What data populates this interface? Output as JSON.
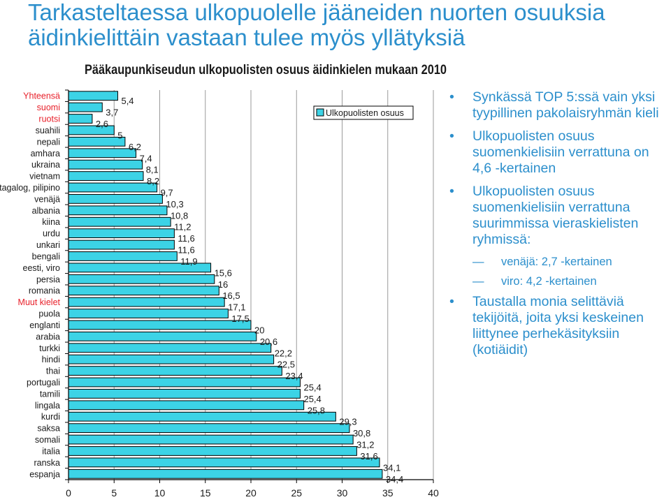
{
  "slide": {
    "title": "Tarkasteltaessa ulkopuolelle jääneiden nuorten osuuksia äidinkielittäin vastaan tulee myös yllätyksiä"
  },
  "bullets": [
    {
      "type": "bullet",
      "text": "Synkässä TOP 5:ssä vain yksi tyypillinen pakolaisryhmän kieli"
    },
    {
      "type": "bullet",
      "text": "Ulkopuolisten osuus suomenkielisiin verrattuna on 4,6 -kertainen"
    },
    {
      "type": "bullet",
      "text": "Ulkopuolisten osuus suomenkielisiin verrattuna suurimmissa vieraskielisten ryhmissä:"
    },
    {
      "type": "sub",
      "text": "venäjä: 2,7 -kertainen"
    },
    {
      "type": "sub",
      "text": "viro: 4,2 -kertainen"
    },
    {
      "type": "bullet",
      "text": "Taustalla monia selittäviä tekijöitä, joita yksi keskeinen liittynee perhekäsityksiin (kotiäidit)"
    }
  ],
  "chart_data": {
    "type": "bar",
    "orientation": "horizontal",
    "title": "Pääkaupunkiseudun ulkopuolisten osuus äidinkielen mukaan 2010",
    "xlabel": "",
    "ylabel": "",
    "xlim": [
      0,
      40
    ],
    "x_ticks": [
      "0",
      "5",
      "10",
      "15",
      "20",
      "25",
      "30",
      "35",
      "40"
    ],
    "legend": {
      "label": "Ulkopuolisten osuus",
      "position": "top-right"
    },
    "grid": "vertical",
    "colors": {
      "bar": "#3cd3e6",
      "bar_edge": "#000000",
      "highlight_label": "#e8212b",
      "normal_label": "#1a1a1a",
      "grid": "#9a9a9a"
    },
    "highlight_categories": [
      "Yhteensä",
      "suomi",
      "ruotsi",
      "Muut kielet"
    ],
    "categories": [
      "Yhteensä",
      "suomi",
      "ruotsi",
      "suahili",
      "nepali",
      "amhara",
      "ukraina",
      "vietnam",
      "tagalog, pilipino",
      "venäjä",
      "albania",
      "kiina",
      "urdu",
      "unkari",
      "bengali",
      "eesti, viro",
      "persia",
      "romania",
      "Muut kielet",
      "puola",
      "englanti",
      "arabia",
      "turkki",
      "hindi",
      "thai",
      "portugali",
      "tamili",
      "lingala",
      "kurdi",
      "saksa",
      "somali",
      "italia",
      "ranska",
      "espanja"
    ],
    "values": [
      5.4,
      3.7,
      2.6,
      5,
      6.2,
      7.4,
      8.1,
      8.2,
      9.7,
      10.3,
      10.8,
      11.2,
      11.6,
      11.6,
      11.9,
      15.6,
      16,
      16.5,
      17.1,
      17.5,
      20,
      20.6,
      22.2,
      22.5,
      23.4,
      25.4,
      25.4,
      25.8,
      29.3,
      30.8,
      31.2,
      31.6,
      34.1,
      34.4
    ],
    "value_labels": [
      "5,4",
      "3,7",
      "2,6",
      "5",
      "6,2",
      "7,4",
      "8,1",
      "8,2",
      "9,7",
      "10,3",
      "10,8",
      "11,2",
      "11,6",
      "11,6",
      "11,9",
      "15,6",
      "16",
      "16,5",
      "17,1",
      "17,5",
      "20",
      "20,6",
      "22,2",
      "22,5",
      "23,4",
      "25,4",
      "25,4",
      "25,8",
      "29,3",
      "30,8",
      "31,2",
      "31,6",
      "34,1",
      "34,4"
    ]
  }
}
